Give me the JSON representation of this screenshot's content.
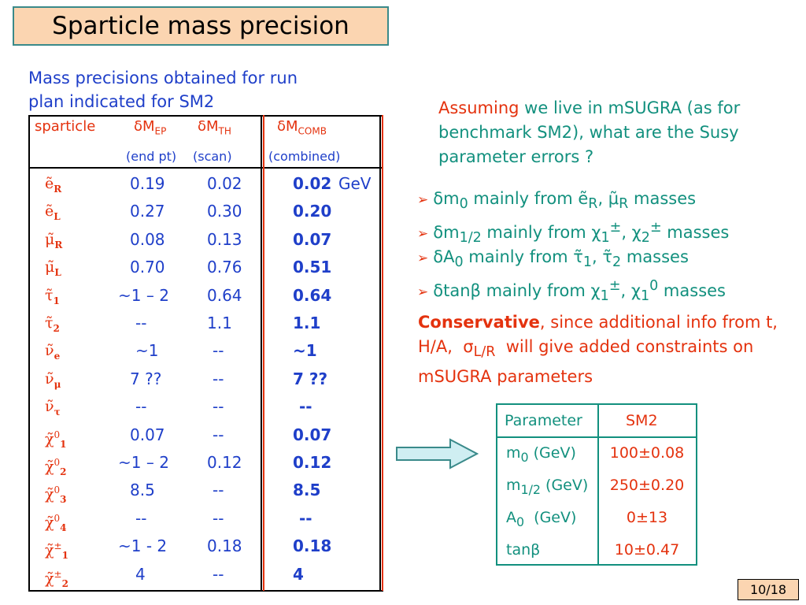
{
  "title": "Sparticle mass precision",
  "intro": [
    "Mass precisions obtained for run",
    "plan indicated for SM2"
  ],
  "table": {
    "headers": {
      "sparticle": "sparticle",
      "ep_main": "δM",
      "ep_sub": "EP",
      "th_main": "δM",
      "th_sub": "TH",
      "comb_main": "δM",
      "comb_sub": "COMB"
    },
    "subheaders": {
      "ep": "(end pt)",
      "th": "(scan)",
      "comb": "(combined)"
    },
    "unit": "GeV",
    "rows": [
      {
        "name": "ẽ",
        "sub": "R",
        "sup": "",
        "ep": "0.19",
        "th": "0.02",
        "comb": "0.02"
      },
      {
        "name": "ẽ",
        "sub": "L",
        "sup": "",
        "ep": "0.27",
        "th": "0.30",
        "comb": "0.20"
      },
      {
        "name": "μ̃",
        "sub": "R",
        "sup": "",
        "ep": "0.08",
        "th": "0.13",
        "comb": "0.07"
      },
      {
        "name": "μ̃",
        "sub": "L",
        "sup": "",
        "ep": "0.70",
        "th": "0.76",
        "comb": "0.51"
      },
      {
        "name": "τ̃",
        "sub": "1",
        "sup": "",
        "ep": "~1 – 2",
        "th": "0.64",
        "comb": "0.64"
      },
      {
        "name": "τ̃",
        "sub": "2",
        "sup": "",
        "ep": "--",
        "th": "1.1",
        "comb": "1.1"
      },
      {
        "name": "ν̃",
        "sub": "e",
        "sup": "",
        "ep": "~1",
        "th": "--",
        "comb": "~1"
      },
      {
        "name": "ν̃",
        "sub": "μ",
        "sup": "",
        "ep": "7 ??",
        "th": "--",
        "comb": "7 ??"
      },
      {
        "name": "ν̃",
        "sub": "τ",
        "sup": "",
        "ep": "--",
        "th": "--",
        "comb": "--"
      },
      {
        "name": "χ̃",
        "sub": "1",
        "sup": "0",
        "ep": "0.07",
        "th": "--",
        "comb": "0.07"
      },
      {
        "name": "χ̃",
        "sub": "2",
        "sup": "0",
        "ep": "~1 – 2",
        "th": "0.12",
        "comb": "0.12"
      },
      {
        "name": "χ̃",
        "sub": "3",
        "sup": "0",
        "ep": "8.5",
        "th": "--",
        "comb": "8.5"
      },
      {
        "name": "χ̃",
        "sub": "4",
        "sup": "0",
        "ep": "--",
        "th": "--",
        "comb": "--"
      },
      {
        "name": "χ̃",
        "sub": "1",
        "sup": "±",
        "ep": "~1 - 2",
        "th": "0.18",
        "comb": "0.18"
      },
      {
        "name": "χ̃",
        "sub": "2",
        "sup": "±",
        "ep": "4",
        "th": "--",
        "comb": "4"
      }
    ]
  },
  "assuming": {
    "lead": "Assuming",
    "rest": " we live in mSUGRA (as for benchmark SM2), what are the Susy parameter errors ?"
  },
  "bullets": [
    {
      "html": "δm<sub>0</sub> mainly from ẽ<sub>R</sub>, μ̃<sub>R</sub> masses"
    },
    {
      "html": "δm<sub>1/2</sub> mainly from χ<sub>1</sub><sup>±</sup>, χ<sub>2</sub><sup>±</sup> masses"
    },
    {
      "html": "δA<sub>0</sub> mainly from τ̃<sub>1</sub>, τ̃<sub>2</sub> masses"
    },
    {
      "html": "δtanβ mainly from χ<sub>1</sub><sup>±</sup>, χ<sub>1</sub><sup>0</sup> masses"
    }
  ],
  "conservative": {
    "lead": "Conservative",
    "rest_html": ", since additional info from t,&nbsp; H/A,&nbsp; σ<sub>L/R</sub>&nbsp; will give added constraints on mSUGRA parameters"
  },
  "params": {
    "header_param": "Parameter",
    "header_sm2": "SM2",
    "rows": [
      {
        "name_html": "m<sub>0</sub> (GeV)",
        "value": "100±0.08"
      },
      {
        "name_html": "m<sub>1/2</sub> (GeV)",
        "value": "250±0.20"
      },
      {
        "name_html": "A<sub>0</sub>&nbsp; (GeV)",
        "value": "0±13"
      },
      {
        "name_html": "tanβ",
        "value": "10±0.47"
      }
    ]
  },
  "slide_number": "10/18",
  "colors": {
    "blue": "#1f3fc9",
    "red": "#e4320e",
    "teal": "#12907e",
    "title_bg": "#fbd5b1"
  }
}
